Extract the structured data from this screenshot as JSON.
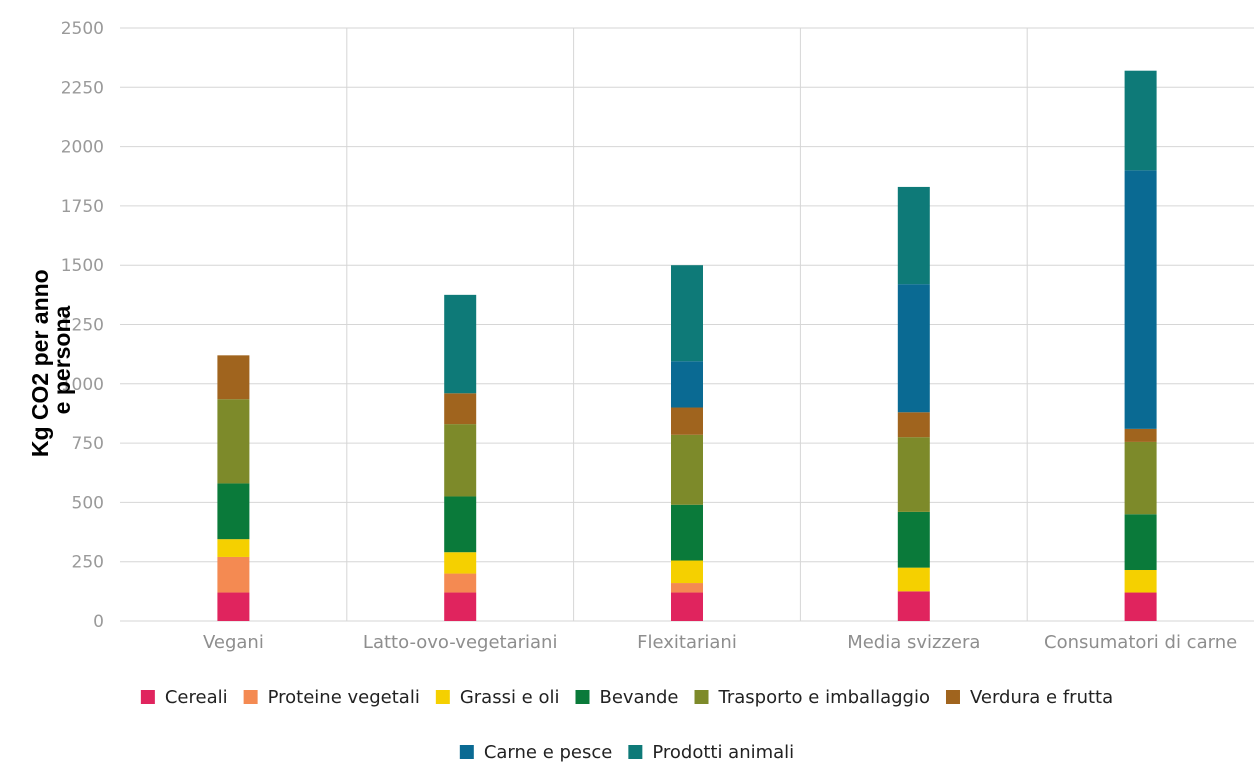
{
  "chart_data": {
    "type": "bar",
    "stacked": true,
    "title": "",
    "xlabel": "",
    "ylabel": "Kg CO2 per anno e persona",
    "ylim": [
      0,
      2500
    ],
    "yticks": [
      0,
      250,
      500,
      750,
      1000,
      1250,
      1500,
      1750,
      2000,
      2250,
      2500
    ],
    "grid": true,
    "legend_position": "bottom",
    "categories": [
      "Vegani",
      "Latto-ovo-vegetariani",
      "Flexitariani",
      "Media svizzera",
      "Consumatori di carne"
    ],
    "series": [
      {
        "name": "Cereali",
        "color": "#e0245e",
        "values": [
          120,
          120,
          120,
          125,
          120
        ]
      },
      {
        "name": "Proteine vegetali",
        "color": "#f48a52",
        "values": [
          150,
          80,
          40,
          0,
          0
        ]
      },
      {
        "name": "Grassi e oli",
        "color": "#f5d000",
        "values": [
          75,
          90,
          95,
          100,
          95
        ]
      },
      {
        "name": "Bevande",
        "color": "#0a7a3a",
        "values": [
          235,
          235,
          235,
          235,
          235
        ]
      },
      {
        "name": "Trasporto e imballaggio",
        "color": "#7d8a2a",
        "values": [
          355,
          305,
          295,
          315,
          305
        ]
      },
      {
        "name": "Verdura e frutta",
        "color": "#a0641e",
        "values": [
          185,
          130,
          115,
          105,
          55
        ]
      },
      {
        "name": "Carne e pesce",
        "color": "#0a6a93",
        "values": [
          0,
          0,
          195,
          540,
          1090
        ]
      },
      {
        "name": "Prodotti animali",
        "color": "#0e7a78",
        "values": [
          0,
          415,
          405,
          410,
          420
        ]
      }
    ]
  }
}
